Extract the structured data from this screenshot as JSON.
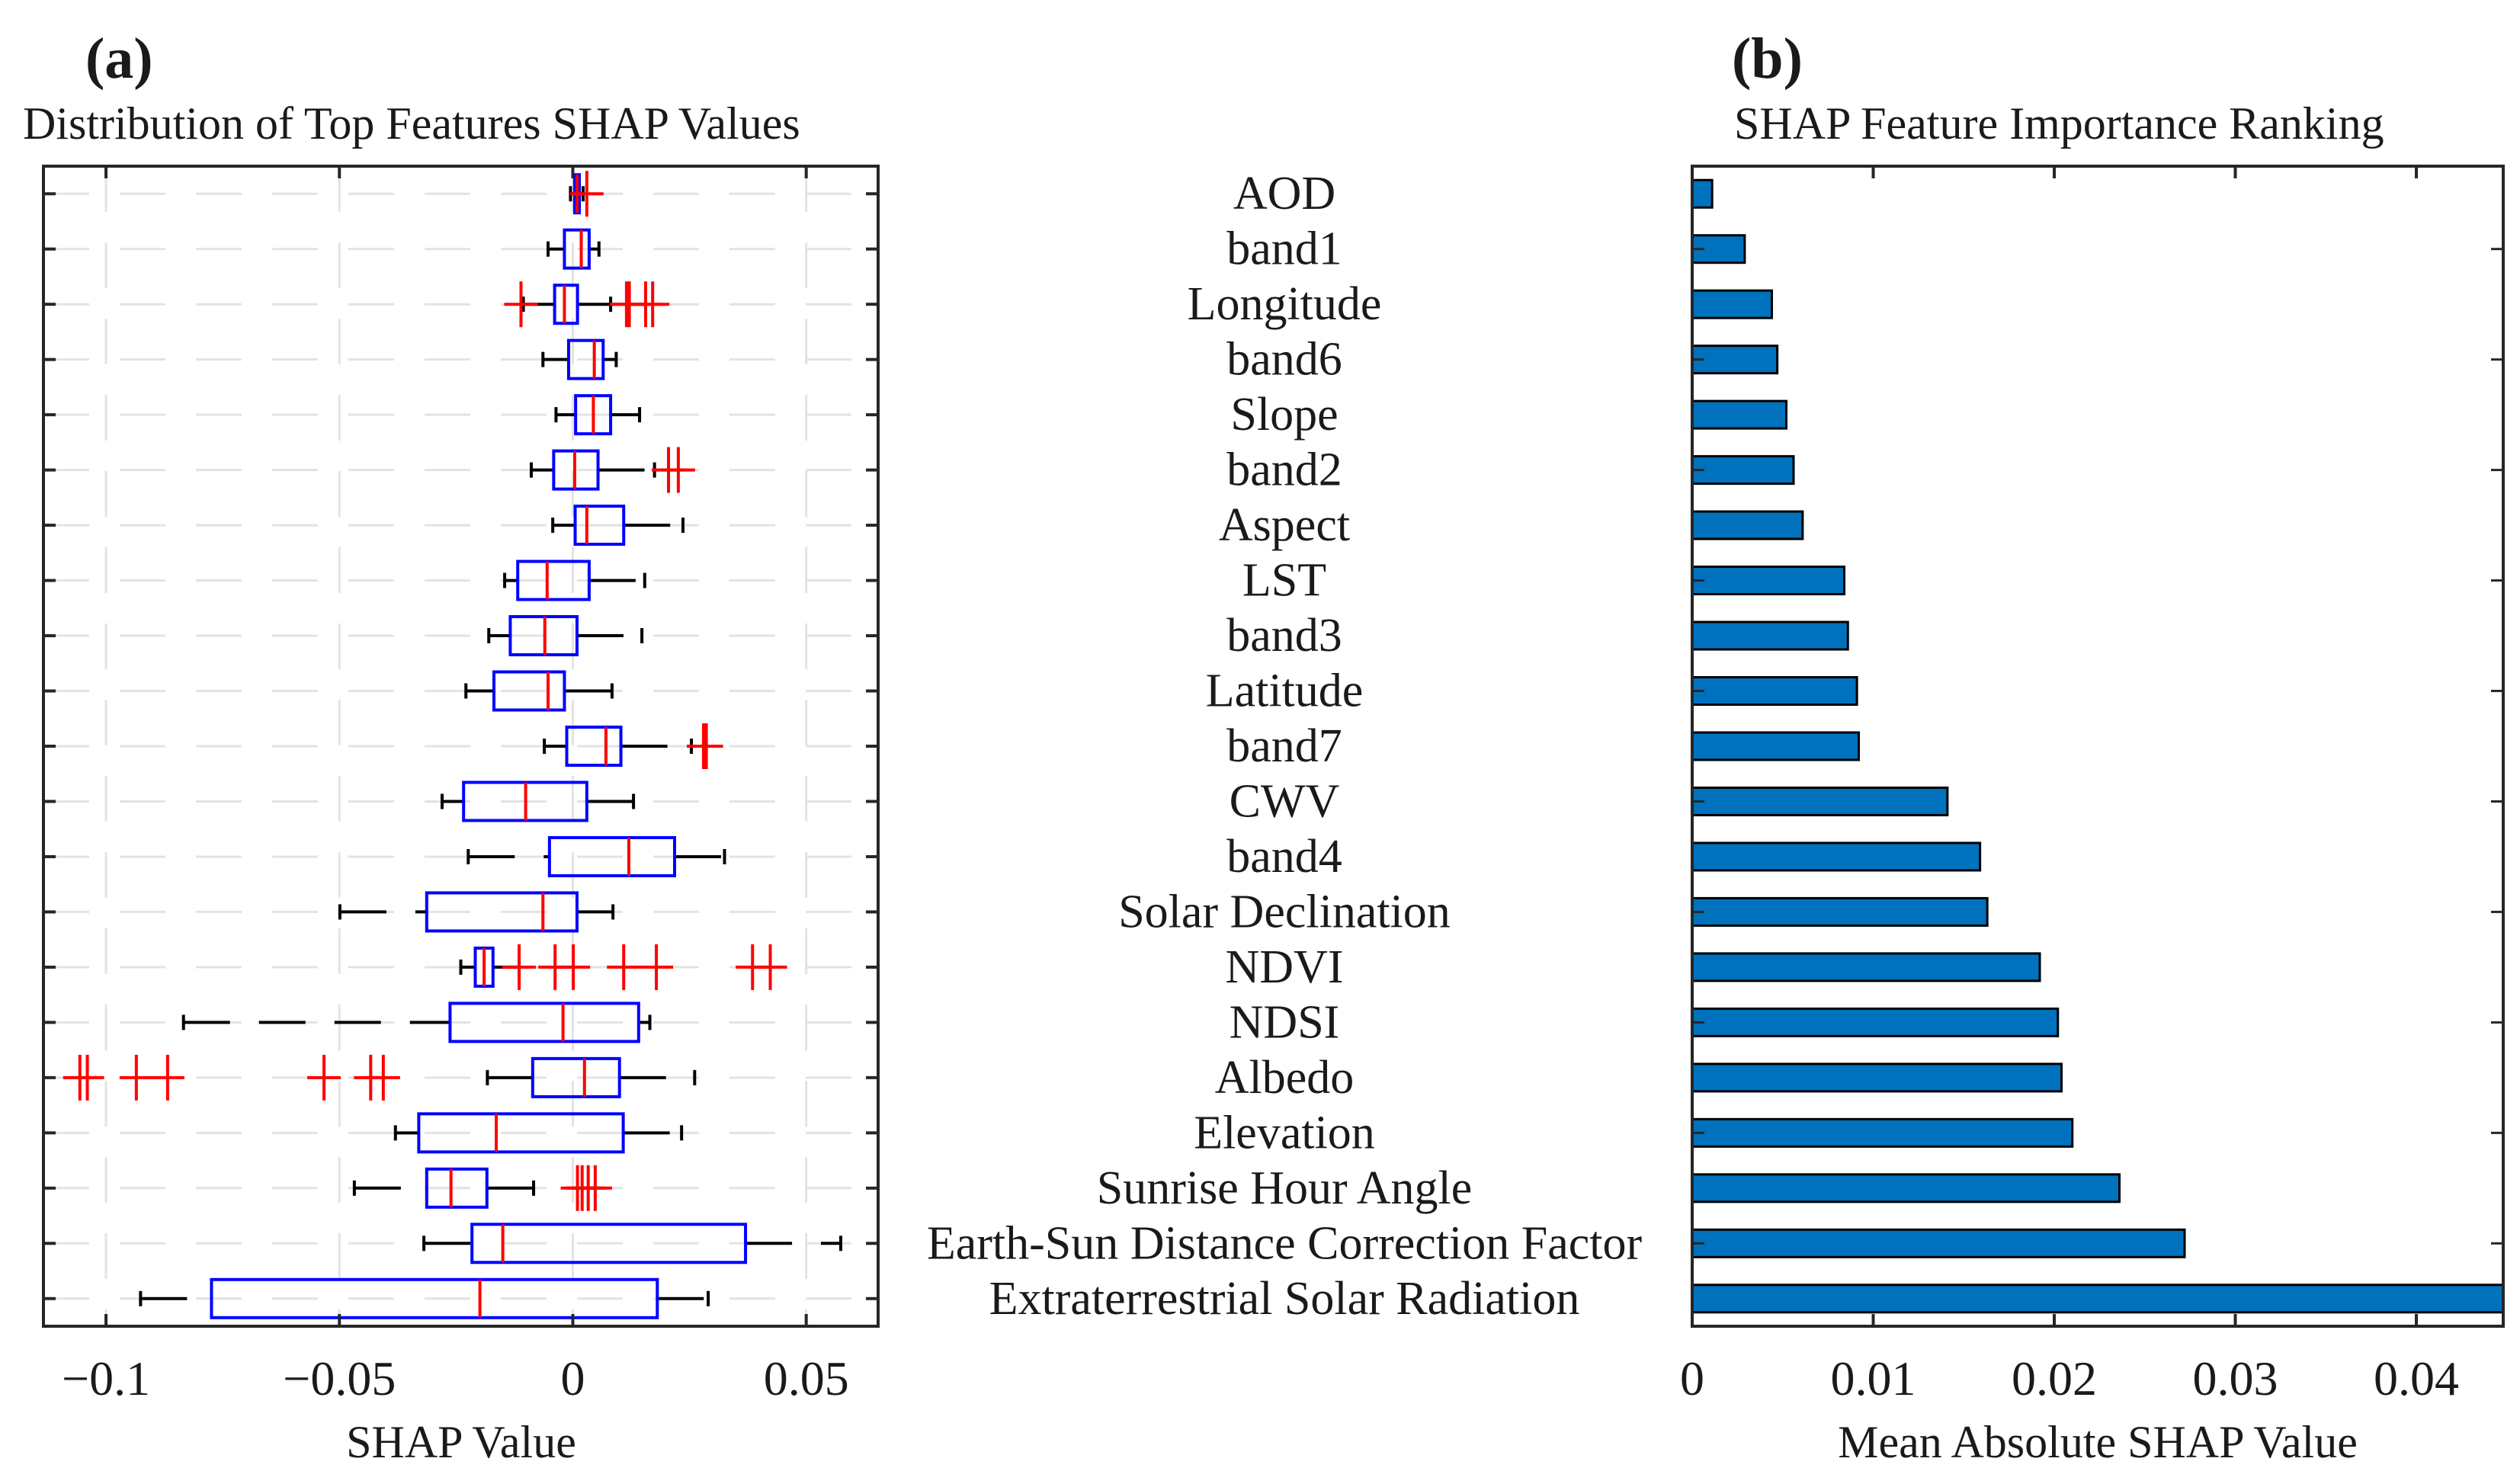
{
  "chart_data": [
    {
      "type": "box",
      "panel_label": "(a)",
      "title": "Distribution of Top Features SHAP Values",
      "xlabel": "SHAP Value",
      "ylabel": "",
      "xlim": [
        -0.1134,
        0.0654
      ],
      "xticks": [
        -0.1,
        -0.05,
        0,
        0.05
      ],
      "xtick_labels": [
        "−0.1",
        "−0.05",
        "0",
        "0.05"
      ],
      "grid": true,
      "categories": [
        "AOD",
        "band1",
        "Longitude",
        "band6",
        "Slope",
        "band2",
        "Aspect",
        "LST",
        "band3",
        "Latitude",
        "band7",
        "CWV",
        "band4",
        "Solar Declination",
        "NDVI",
        "NDSI",
        "Albedo",
        "Elevation",
        "Sunrise Hour Angle",
        "Earth-Sun Distance Correction Factor",
        "Extraterrestrial Solar Radiation"
      ],
      "boxes": [
        {
          "whisker_low": -0.0005,
          "q1": 0.0004,
          "median": 0.0009,
          "q3": 0.0014,
          "whisker_high": 0.0022,
          "outliers": [
            0.003
          ]
        },
        {
          "whisker_low": -0.0053,
          "q1": -0.0018,
          "median": 0.0018,
          "q3": 0.0035,
          "whisker_high": 0.0056,
          "outliers": []
        },
        {
          "whisker_low": -0.0106,
          "q1": -0.0039,
          "median": -0.0018,
          "q3": 0.001,
          "whisker_high": 0.0081,
          "outliers": [
            -0.0111,
            0.0115,
            0.0121,
            0.0156,
            0.0171
          ]
        },
        {
          "whisker_low": -0.0064,
          "q1": -0.0009,
          "median": 0.0046,
          "q3": 0.0065,
          "whisker_high": 0.0093,
          "outliers": []
        },
        {
          "whisker_low": -0.0036,
          "q1": 0.0006,
          "median": 0.0044,
          "q3": 0.0081,
          "whisker_high": 0.0143,
          "outliers": []
        },
        {
          "whisker_low": -0.0089,
          "q1": -0.0041,
          "median": 0.0004,
          "q3": 0.0054,
          "whisker_high": 0.0175,
          "outliers": [
            0.0205,
            0.0226
          ]
        },
        {
          "whisker_low": -0.0043,
          "q1": 0.0005,
          "median": 0.003,
          "q3": 0.0109,
          "whisker_high": 0.0236,
          "outliers": []
        },
        {
          "whisker_low": -0.0146,
          "q1": -0.0118,
          "median": -0.0055,
          "q3": 0.0035,
          "whisker_high": 0.0154,
          "outliers": []
        },
        {
          "whisker_low": -0.018,
          "q1": -0.0134,
          "median": -0.006,
          "q3": 0.0009,
          "whisker_high": 0.0148,
          "outliers": []
        },
        {
          "whisker_low": -0.0229,
          "q1": -0.0169,
          "median": -0.0053,
          "q3": -0.0018,
          "whisker_high": 0.0084,
          "outliers": []
        },
        {
          "whisker_low": -0.0061,
          "q1": -0.0013,
          "median": 0.0071,
          "q3": 0.0103,
          "whisker_high": 0.0254,
          "outliers": [
            0.028,
            0.0286
          ]
        },
        {
          "whisker_low": -0.028,
          "q1": -0.0234,
          "median": -0.0101,
          "q3": 0.003,
          "whisker_high": 0.013,
          "outliers": []
        },
        {
          "whisker_low": -0.0224,
          "q1": -0.005,
          "median": 0.012,
          "q3": 0.0218,
          "whisker_high": 0.0325,
          "outliers": []
        },
        {
          "whisker_low": -0.0499,
          "q1": -0.0313,
          "median": -0.0064,
          "q3": 0.0009,
          "whisker_high": 0.0086,
          "outliers": []
        },
        {
          "whisker_low": -0.024,
          "q1": -0.0209,
          "median": -0.019,
          "q3": -0.0171,
          "whisker_high": -0.0115,
          "outliers": [
            -0.0115,
            -0.0038,
            0.0001,
            0.0109,
            0.0179,
            0.0385,
            0.0423
          ]
        },
        {
          "whisker_low": -0.0834,
          "q1": -0.0263,
          "median": -0.0021,
          "q3": 0.0141,
          "whisker_high": 0.0165,
          "outliers": []
        },
        {
          "whisker_low": -0.0183,
          "q1": -0.0086,
          "median": 0.0025,
          "q3": 0.01,
          "whisker_high": 0.0261,
          "outliers": [
            -0.1056,
            -0.104,
            -0.0935,
            -0.0868,
            -0.0533,
            -0.0433,
            -0.0406
          ]
        },
        {
          "whisker_low": -0.038,
          "q1": -0.033,
          "median": -0.0164,
          "q3": 0.0108,
          "whisker_high": 0.0233,
          "outliers": []
        },
        {
          "whisker_low": -0.0468,
          "q1": -0.0313,
          "median": -0.0261,
          "q3": -0.0184,
          "whisker_high": -0.0084,
          "outliers": [
            0.001,
            0.002,
            0.0033,
            0.0048
          ]
        },
        {
          "whisker_low": -0.0319,
          "q1": -0.0216,
          "median": -0.015,
          "q3": 0.037,
          "whisker_high": 0.0574,
          "outliers": []
        },
        {
          "whisker_low": -0.0926,
          "q1": -0.0774,
          "median": -0.0199,
          "q3": 0.0181,
          "whisker_high": 0.029,
          "outliers": []
        }
      ],
      "colors": {
        "box": "#0000ff",
        "median": "#ff0000",
        "outlier": "#ff0000",
        "whisker": "#000000",
        "grid": "#e3e3e3"
      }
    },
    {
      "type": "bar",
      "orientation": "horizontal",
      "panel_label": "(b)",
      "title": "SHAP Feature Importance Ranking",
      "xlabel": "Mean Absolute SHAP Value",
      "ylabel": "",
      "xlim": [
        0,
        0.0448
      ],
      "xticks": [
        0,
        0.01,
        0.02,
        0.03,
        0.04
      ],
      "xtick_labels": [
        "0",
        "0.01",
        "0.02",
        "0.03",
        "0.04"
      ],
      "grid": false,
      "categories": [
        "AOD",
        "band1",
        "Longitude",
        "band6",
        "Slope",
        "band2",
        "Aspect",
        "LST",
        "band3",
        "Latitude",
        "band7",
        "CWV",
        "band4",
        "Solar Declination",
        "NDVI",
        "NDSI",
        "Albedo",
        "Elevation",
        "Sunrise Hour Angle",
        "Earth-Sun Distance Correction Factor",
        "Extraterrestrial Solar Radiation"
      ],
      "values": [
        0.0011,
        0.0029,
        0.0044,
        0.0047,
        0.0052,
        0.0056,
        0.0061,
        0.0084,
        0.0086,
        0.0091,
        0.0092,
        0.0141,
        0.0159,
        0.0163,
        0.0192,
        0.0202,
        0.0204,
        0.021,
        0.0236,
        0.0272,
        0.0449
      ],
      "colors": {
        "bar": "#0072bd",
        "edge": "#000000"
      }
    }
  ]
}
